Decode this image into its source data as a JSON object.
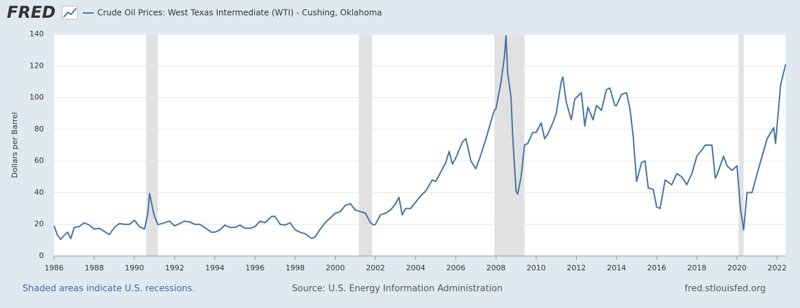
{
  "logo": "FRED",
  "chart_data": {
    "type": "line",
    "y_label": "Dollars per Barrel",
    "x": [
      1986.0,
      1986.17,
      1986.33,
      1986.5,
      1986.67,
      1986.83,
      1987.0,
      1987.25,
      1987.5,
      1987.75,
      1988.0,
      1988.25,
      1988.5,
      1988.75,
      1989.0,
      1989.25,
      1989.5,
      1989.75,
      1990.0,
      1990.25,
      1990.5,
      1990.67,
      1990.75,
      1990.92,
      1991.0,
      1991.17,
      1991.5,
      1991.75,
      1992.0,
      1992.25,
      1992.5,
      1992.75,
      1993.0,
      1993.25,
      1993.5,
      1993.83,
      1994.0,
      1994.25,
      1994.5,
      1994.75,
      1995.0,
      1995.25,
      1995.5,
      1995.75,
      1996.0,
      1996.25,
      1996.5,
      1996.83,
      1997.0,
      1997.25,
      1997.5,
      1997.75,
      1998.0,
      1998.25,
      1998.5,
      1998.83,
      1999.0,
      1999.25,
      1999.5,
      1999.75,
      2000.0,
      2000.25,
      2000.5,
      2000.75,
      2001.0,
      2001.25,
      2001.5,
      2001.75,
      2001.92,
      2002.0,
      2002.25,
      2002.5,
      2002.75,
      2003.0,
      2003.17,
      2003.33,
      2003.5,
      2003.75,
      2004.0,
      2004.25,
      2004.5,
      2004.83,
      2005.0,
      2005.25,
      2005.5,
      2005.67,
      2005.83,
      2006.0,
      2006.33,
      2006.5,
      2006.75,
      2007.0,
      2007.25,
      2007.5,
      2007.75,
      2007.92,
      2008.0,
      2008.25,
      2008.42,
      2008.5,
      2008.58,
      2008.75,
      2008.83,
      2008.92,
      2009.0,
      2009.08,
      2009.25,
      2009.42,
      2009.58,
      2009.83,
      2010.0,
      2010.25,
      2010.42,
      2010.58,
      2010.83,
      2011.0,
      2011.25,
      2011.33,
      2011.5,
      2011.75,
      2011.92,
      2012.0,
      2012.25,
      2012.42,
      2012.58,
      2012.83,
      2013.0,
      2013.25,
      2013.5,
      2013.67,
      2013.92,
      2014.0,
      2014.25,
      2014.5,
      2014.67,
      2014.83,
      2015.0,
      2015.25,
      2015.42,
      2015.58,
      2015.83,
      2016.0,
      2016.17,
      2016.42,
      2016.75,
      2017.0,
      2017.25,
      2017.5,
      2017.75,
      2018.0,
      2018.25,
      2018.42,
      2018.75,
      2018.92,
      2019.0,
      2019.33,
      2019.5,
      2019.75,
      2020.0,
      2020.17,
      2020.33,
      2020.5,
      2020.75,
      2021.0,
      2021.25,
      2021.5,
      2021.83,
      2021.92,
      2022.0,
      2022.17,
      2022.42
    ],
    "series": [
      {
        "name": "Crude Oil Prices: West Texas Intermediate (WTI) - Cushing, Oklahoma",
        "color": "#4572a7",
        "values": [
          19,
          13,
          10.5,
          13,
          15,
          11,
          18,
          18.6,
          21,
          19.5,
          17,
          17.5,
          15.5,
          13.5,
          18,
          20.5,
          20,
          20,
          22.5,
          18.5,
          17,
          27,
          39.5,
          29,
          25,
          19.8,
          21,
          22,
          19,
          20.5,
          22,
          21.5,
          20,
          20,
          18,
          15,
          15,
          16.5,
          19.5,
          18,
          18,
          19.5,
          17.5,
          17.5,
          18.5,
          22,
          21,
          25,
          25,
          20,
          19.5,
          21,
          16.5,
          15,
          14,
          11,
          12,
          17,
          21,
          24,
          27,
          28,
          32,
          33,
          29,
          28,
          27,
          21,
          19.5,
          20,
          26,
          27,
          29,
          33,
          37,
          26,
          30,
          30,
          34,
          38,
          41,
          48,
          47,
          53,
          59,
          66,
          58,
          62,
          72,
          74,
          60,
          55,
          64,
          74,
          85,
          92,
          93,
          110,
          126,
          139,
          116,
          100,
          76,
          57,
          41,
          39,
          50,
          70,
          71,
          78,
          78,
          84,
          74,
          77,
          84,
          90,
          110,
          113,
          97,
          86,
          99,
          100,
          103,
          82,
          94,
          86,
          95,
          92,
          105,
          106,
          95,
          95,
          102,
          103,
          93,
          76,
          47,
          59,
          60,
          43,
          42,
          31,
          30,
          48,
          45,
          52,
          50,
          45,
          52,
          63,
          67,
          70,
          70,
          49,
          51,
          63,
          57,
          54,
          57,
          30,
          16.5,
          40,
          40,
          52,
          63,
          74,
          81,
          71,
          83,
          108,
          121
        ]
      }
    ],
    "recessions": [
      [
        1990.58,
        1991.17
      ],
      [
        2001.17,
        2001.83
      ],
      [
        2007.92,
        2009.42
      ],
      [
        2020.08,
        2020.33
      ]
    ],
    "xlim": [
      1986,
      2022.42
    ],
    "xticks": [
      1986,
      1988,
      1990,
      1992,
      1994,
      1996,
      1998,
      2000,
      2002,
      2004,
      2006,
      2008,
      2010,
      2012,
      2014,
      2016,
      2018,
      2020,
      2022
    ],
    "ylim": [
      0,
      140
    ],
    "yticks": [
      0,
      20,
      40,
      60,
      80,
      100,
      120,
      140
    ],
    "grid": true,
    "recession_note": "Shaded areas indicate U.S. recessions.",
    "source": "Source: U.S. Energy Information Administration",
    "site": "fred.stlouisfed.org"
  }
}
